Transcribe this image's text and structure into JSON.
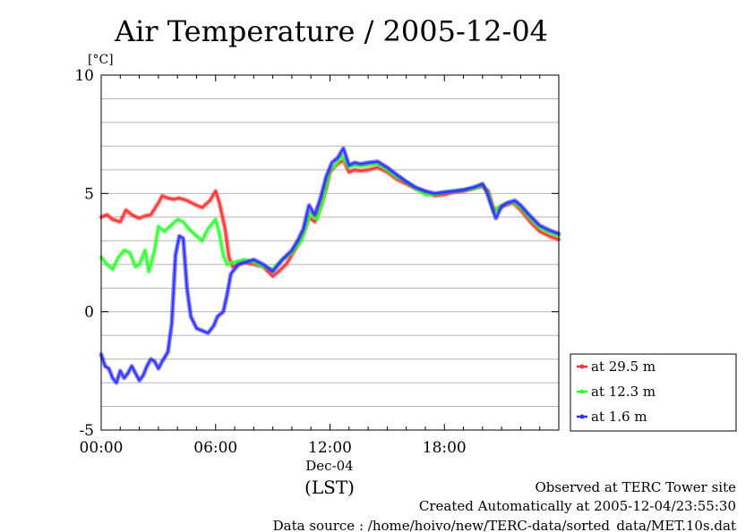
{
  "chart_data": {
    "type": "line",
    "title": "Air Temperature / 2005-12-04",
    "ylabel": "[°C]",
    "xlabel": "(LST)",
    "xlabel_date": "Dec-04",
    "ylim": [
      -5,
      10
    ],
    "xlim_hours": [
      0,
      24
    ],
    "yticks": [
      -5,
      0,
      5,
      10
    ],
    "ytick_labels": [
      "-5",
      "0",
      "5",
      "10"
    ],
    "xticks_hours": [
      0,
      6,
      12,
      18
    ],
    "xtick_labels": [
      "00:00",
      "06:00",
      "12:00",
      "18:00"
    ],
    "grid": true,
    "legend_position": "right-bottom",
    "series": [
      {
        "name": "at 29.5 m",
        "color": "#ff3030",
        "points": [
          [
            0,
            4.0
          ],
          [
            0.3,
            4.1
          ],
          [
            0.6,
            3.9
          ],
          [
            1.0,
            3.8
          ],
          [
            1.3,
            4.3
          ],
          [
            1.6,
            4.1
          ],
          [
            2.0,
            3.95
          ],
          [
            2.3,
            4.05
          ],
          [
            2.6,
            4.1
          ],
          [
            3.0,
            4.6
          ],
          [
            3.2,
            4.9
          ],
          [
            3.5,
            4.8
          ],
          [
            3.8,
            4.75
          ],
          [
            4.1,
            4.8
          ],
          [
            4.5,
            4.7
          ],
          [
            5.0,
            4.5
          ],
          [
            5.3,
            4.4
          ],
          [
            5.7,
            4.7
          ],
          [
            6.0,
            5.1
          ],
          [
            6.2,
            4.6
          ],
          [
            6.5,
            3.5
          ],
          [
            6.7,
            2.3
          ],
          [
            6.9,
            1.9
          ],
          [
            7.2,
            2.0
          ],
          [
            7.5,
            2.1
          ],
          [
            8.0,
            2.0
          ],
          [
            8.5,
            1.9
          ],
          [
            9.0,
            1.5
          ],
          [
            9.3,
            1.7
          ],
          [
            9.7,
            2.0
          ],
          [
            10.0,
            2.4
          ],
          [
            10.3,
            2.8
          ],
          [
            10.6,
            3.3
          ],
          [
            10.9,
            4.0
          ],
          [
            11.2,
            3.8
          ],
          [
            11.5,
            4.4
          ],
          [
            11.8,
            5.2
          ],
          [
            12.0,
            5.9
          ],
          [
            12.2,
            6.1
          ],
          [
            12.5,
            6.3
          ],
          [
            12.7,
            6.4
          ],
          [
            13.0,
            5.9
          ],
          [
            13.3,
            6.0
          ],
          [
            13.6,
            5.95
          ],
          [
            14.0,
            6.0
          ],
          [
            14.5,
            6.1
          ],
          [
            15.0,
            5.9
          ],
          [
            15.5,
            5.6
          ],
          [
            16.0,
            5.4
          ],
          [
            16.5,
            5.2
          ],
          [
            17.0,
            5.05
          ],
          [
            17.5,
            4.9
          ],
          [
            18.0,
            4.95
          ],
          [
            18.5,
            5.05
          ],
          [
            19.0,
            5.1
          ],
          [
            19.5,
            5.2
          ],
          [
            20.0,
            5.3
          ],
          [
            20.3,
            5.1
          ],
          [
            20.6,
            4.3
          ],
          [
            20.9,
            4.4
          ],
          [
            21.2,
            4.5
          ],
          [
            21.6,
            4.6
          ],
          [
            22.0,
            4.3
          ],
          [
            22.5,
            3.8
          ],
          [
            23.0,
            3.4
          ],
          [
            23.5,
            3.2
          ],
          [
            24.0,
            3.05
          ]
        ]
      },
      {
        "name": "at 12.3 m",
        "color": "#30ff30",
        "points": [
          [
            0,
            2.3
          ],
          [
            0.3,
            2.0
          ],
          [
            0.6,
            1.8
          ],
          [
            0.9,
            2.3
          ],
          [
            1.2,
            2.6
          ],
          [
            1.5,
            2.5
          ],
          [
            1.8,
            1.9
          ],
          [
            2.0,
            2.0
          ],
          [
            2.3,
            2.6
          ],
          [
            2.5,
            1.7
          ],
          [
            2.8,
            2.6
          ],
          [
            3.0,
            3.6
          ],
          [
            3.3,
            3.4
          ],
          [
            3.6,
            3.6
          ],
          [
            4.0,
            3.9
          ],
          [
            4.3,
            3.8
          ],
          [
            4.6,
            3.5
          ],
          [
            5.0,
            3.2
          ],
          [
            5.3,
            3.0
          ],
          [
            5.6,
            3.5
          ],
          [
            6.0,
            3.9
          ],
          [
            6.2,
            3.3
          ],
          [
            6.4,
            2.4
          ],
          [
            6.6,
            2.0
          ],
          [
            7.0,
            2.1
          ],
          [
            7.5,
            2.2
          ],
          [
            8.0,
            2.1
          ],
          [
            8.5,
            1.9
          ],
          [
            9.0,
            1.8
          ],
          [
            9.5,
            2.2
          ],
          [
            10.0,
            2.5
          ],
          [
            10.5,
            3.0
          ],
          [
            11.0,
            4.2
          ],
          [
            11.3,
            3.9
          ],
          [
            11.6,
            4.6
          ],
          [
            12.0,
            6.0
          ],
          [
            12.3,
            6.2
          ],
          [
            12.6,
            6.6
          ],
          [
            13.0,
            6.1
          ],
          [
            13.3,
            6.2
          ],
          [
            13.6,
            6.15
          ],
          [
            14.0,
            6.2
          ],
          [
            14.5,
            6.25
          ],
          [
            15.0,
            6.0
          ],
          [
            15.5,
            5.7
          ],
          [
            16.0,
            5.5
          ],
          [
            16.5,
            5.2
          ],
          [
            17.0,
            4.95
          ],
          [
            17.5,
            4.95
          ],
          [
            18.0,
            5.05
          ],
          [
            18.5,
            5.1
          ],
          [
            19.0,
            5.15
          ],
          [
            19.5,
            5.2
          ],
          [
            20.0,
            5.35
          ],
          [
            20.3,
            5.0
          ],
          [
            20.6,
            4.2
          ],
          [
            20.9,
            4.45
          ],
          [
            21.2,
            4.55
          ],
          [
            21.6,
            4.65
          ],
          [
            22.0,
            4.4
          ],
          [
            22.5,
            3.95
          ],
          [
            23.0,
            3.55
          ],
          [
            23.5,
            3.35
          ],
          [
            24.0,
            3.2
          ]
        ]
      },
      {
        "name": "at 1.6 m",
        "color": "#3030ff",
        "points": [
          [
            0,
            -1.8
          ],
          [
            0.2,
            -2.3
          ],
          [
            0.4,
            -2.4
          ],
          [
            0.6,
            -2.8
          ],
          [
            0.8,
            -3.0
          ],
          [
            1.0,
            -2.5
          ],
          [
            1.2,
            -2.8
          ],
          [
            1.4,
            -2.6
          ],
          [
            1.6,
            -2.3
          ],
          [
            1.8,
            -2.6
          ],
          [
            2.0,
            -2.9
          ],
          [
            2.2,
            -2.7
          ],
          [
            2.4,
            -2.3
          ],
          [
            2.6,
            -2.0
          ],
          [
            2.8,
            -2.1
          ],
          [
            3.0,
            -2.4
          ],
          [
            3.2,
            -2.1
          ],
          [
            3.5,
            -1.7
          ],
          [
            3.7,
            -0.5
          ],
          [
            3.9,
            2.4
          ],
          [
            4.1,
            3.2
          ],
          [
            4.3,
            3.1
          ],
          [
            4.5,
            1.0
          ],
          [
            4.7,
            -0.2
          ],
          [
            5.0,
            -0.7
          ],
          [
            5.3,
            -0.8
          ],
          [
            5.6,
            -0.9
          ],
          [
            5.9,
            -0.6
          ],
          [
            6.1,
            -0.2
          ],
          [
            6.4,
            0.0
          ],
          [
            6.6,
            0.7
          ],
          [
            6.8,
            1.6
          ],
          [
            7.2,
            2.0
          ],
          [
            7.6,
            2.1
          ],
          [
            8.0,
            2.2
          ],
          [
            8.5,
            2.0
          ],
          [
            9.0,
            1.7
          ],
          [
            9.5,
            2.2
          ],
          [
            10.0,
            2.6
          ],
          [
            10.3,
            3.0
          ],
          [
            10.6,
            3.5
          ],
          [
            10.9,
            4.5
          ],
          [
            11.2,
            4.1
          ],
          [
            11.5,
            4.8
          ],
          [
            11.8,
            5.7
          ],
          [
            12.1,
            6.3
          ],
          [
            12.4,
            6.5
          ],
          [
            12.7,
            6.9
          ],
          [
            13.0,
            6.2
          ],
          [
            13.3,
            6.3
          ],
          [
            13.6,
            6.25
          ],
          [
            14.0,
            6.3
          ],
          [
            14.5,
            6.35
          ],
          [
            15.0,
            6.1
          ],
          [
            15.5,
            5.8
          ],
          [
            16.0,
            5.5
          ],
          [
            16.5,
            5.25
          ],
          [
            17.0,
            5.1
          ],
          [
            17.5,
            5.0
          ],
          [
            18.0,
            5.05
          ],
          [
            18.5,
            5.1
          ],
          [
            19.0,
            5.15
          ],
          [
            19.5,
            5.25
          ],
          [
            20.0,
            5.4
          ],
          [
            20.2,
            5.1
          ],
          [
            20.5,
            4.4
          ],
          [
            20.7,
            3.95
          ],
          [
            21.0,
            4.45
          ],
          [
            21.3,
            4.6
          ],
          [
            21.7,
            4.7
          ],
          [
            22.0,
            4.5
          ],
          [
            22.5,
            4.05
          ],
          [
            23.0,
            3.65
          ],
          [
            23.5,
            3.45
          ],
          [
            24.0,
            3.3
          ]
        ]
      }
    ]
  },
  "footer": {
    "line1": "Observed at TERC Tower site",
    "line2": "Created Automatically at 2005-12-04/23:55:30",
    "line3": "Data source : /home/hoivo/new/TERC-data/sorted_data/MET.10s.dat"
  }
}
